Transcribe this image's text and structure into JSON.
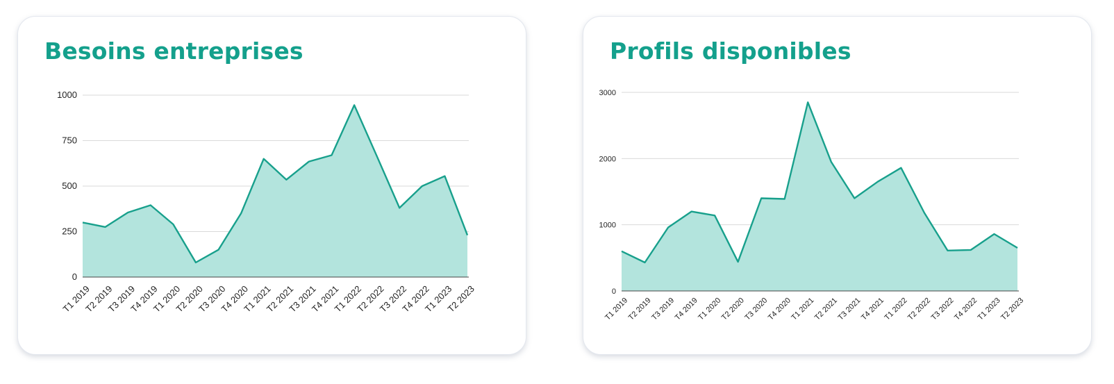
{
  "colors": {
    "title": "#14a08c",
    "line": "#18a08c",
    "fill": "#b3e4dd",
    "grid": "#d9d9d9",
    "axis": "#444444"
  },
  "chart_data": [
    {
      "type": "area",
      "title": "Besoins entreprises",
      "categories": [
        "T1 2019",
        "T2 2019",
        "T3 2019",
        "T4 2019",
        "T1 2020",
        "T2 2020",
        "T3 2020",
        "T4 2020",
        "T1 2021",
        "T2 2021",
        "T3 2021",
        "T4 2021",
        "T1 2022",
        "T2 2022",
        "T3 2022",
        "T4 2022",
        "T1 2023",
        "T2 2023"
      ],
      "values": [
        300,
        275,
        355,
        395,
        290,
        80,
        150,
        350,
        650,
        535,
        635,
        670,
        945,
        665,
        380,
        500,
        555,
        230
      ],
      "ylim": [
        0,
        1000
      ],
      "yticks": [
        0,
        250,
        500,
        750,
        1000
      ],
      "grid": true,
      "xlabel": "",
      "ylabel": ""
    },
    {
      "type": "area",
      "title": "Profils disponibles",
      "categories": [
        "T1 2019",
        "T2 2019",
        "T3 2019",
        "T4 2019",
        "T1 2020",
        "T2 2020",
        "T3 2020",
        "T4 2020",
        "T1 2021",
        "T2 2021",
        "T3 2021",
        "T4 2021",
        "T1 2022",
        "T2 2022",
        "T3 2022",
        "T4 2022",
        "T1 2023",
        "T2 2023"
      ],
      "values": [
        600,
        430,
        960,
        1200,
        1140,
        440,
        1400,
        1390,
        2850,
        1950,
        1400,
        1650,
        1860,
        1180,
        610,
        620,
        860,
        650
      ],
      "ylim": [
        0,
        3000
      ],
      "yticks": [
        0,
        1000,
        2000,
        3000
      ],
      "grid": true,
      "xlabel": "",
      "ylabel": ""
    }
  ]
}
